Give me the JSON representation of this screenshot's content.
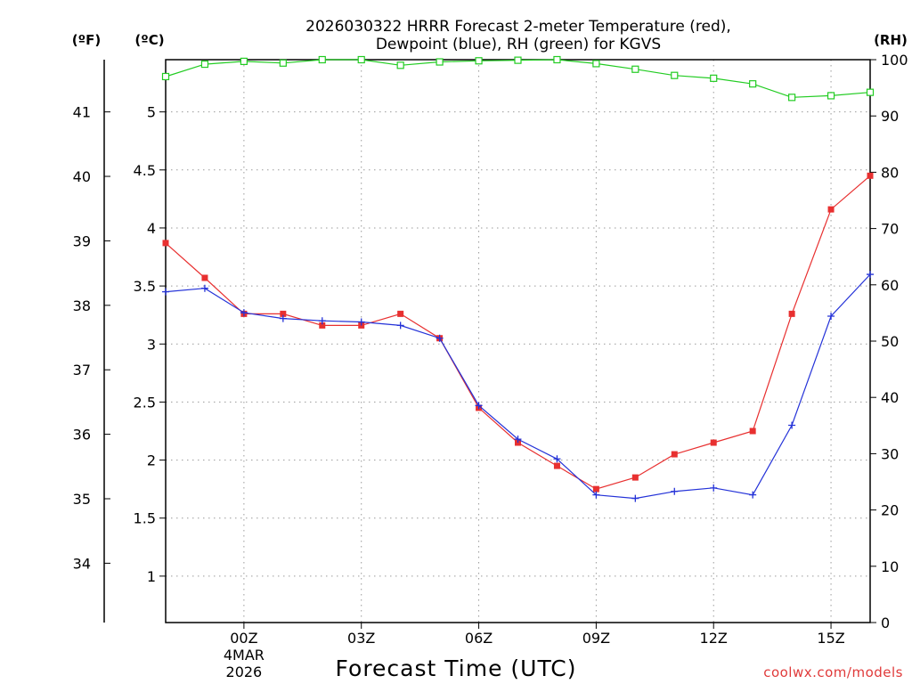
{
  "chart_data": {
    "type": "line",
    "title_line1": "2026030322 HRRR Forecast 2-meter Temperature (red),",
    "title_line2": "Dewpoint (blue), RH (green) for KGVS",
    "xlabel": "Forecast Time (UTC)",
    "credit": "coolwx.com/models",
    "units": {
      "fahrenheit": "(ºF)",
      "celsius": "(ºC)",
      "rh": "(RH)"
    },
    "x_hours": [
      -2,
      -1,
      0,
      1,
      2,
      3,
      4,
      5,
      6,
      7,
      8,
      9,
      10,
      11,
      12,
      13,
      14,
      15,
      16
    ],
    "x_range": [
      -2,
      16
    ],
    "x_ticks": [
      {
        "hour": 0,
        "label": "00Z",
        "date1": "4MAR",
        "date2": "2026"
      },
      {
        "hour": 3,
        "label": "03Z"
      },
      {
        "hour": 6,
        "label": "06Z"
      },
      {
        "hour": 9,
        "label": "09Z"
      },
      {
        "hour": 12,
        "label": "12Z"
      },
      {
        "hour": 15,
        "label": "15Z"
      }
    ],
    "celsius_axis": {
      "range": [
        0.6,
        5.45
      ],
      "ticks": [
        "1",
        "1.5",
        "2",
        "2.5",
        "3",
        "3.5",
        "4",
        "4.5",
        "5"
      ]
    },
    "fahrenheit_ticks": [
      "34",
      "35",
      "36",
      "37",
      "38",
      "39",
      "40",
      "41"
    ],
    "rh_axis": {
      "range": [
        0,
        100
      ],
      "ticks": [
        "0",
        "10",
        "20",
        "30",
        "40",
        "50",
        "60",
        "70",
        "80",
        "90",
        "100"
      ]
    },
    "series": [
      {
        "name": "Temperature",
        "unit": "C",
        "color": "#e83030",
        "marker": "square",
        "values": [
          3.87,
          3.57,
          3.26,
          3.26,
          3.16,
          3.16,
          3.26,
          3.05,
          2.45,
          2.15,
          1.95,
          1.75,
          1.85,
          2.05,
          2.15,
          2.25,
          3.26,
          4.16,
          4.45
        ]
      },
      {
        "name": "Dewpoint",
        "unit": "C",
        "color": "#2432d8",
        "marker": "plus",
        "values": [
          3.45,
          3.48,
          3.27,
          3.22,
          3.2,
          3.19,
          3.16,
          3.05,
          2.47,
          2.18,
          2.01,
          1.7,
          1.67,
          1.73,
          1.76,
          1.7,
          2.3,
          3.24,
          3.6
        ]
      },
      {
        "name": "RH",
        "unit": "%",
        "color": "#22cc22",
        "marker": "open-square",
        "values": [
          97,
          99.2,
          99.7,
          99.4,
          100,
          100,
          99,
          99.6,
          99.8,
          99.9,
          100,
          99.3,
          98.3,
          97.2,
          96.7,
          95.7,
          93.3,
          93.6,
          94.2
        ]
      }
    ]
  }
}
